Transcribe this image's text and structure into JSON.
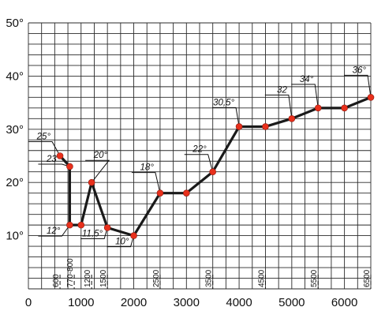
{
  "chart_data": {
    "type": "line",
    "title": "",
    "xlabel": "",
    "ylabel": "",
    "xlim": [
      0,
      6500
    ],
    "ylim": [
      0,
      50
    ],
    "grid": true,
    "x_tick_labels": [
      "0",
      "1000",
      "2000",
      "3000",
      "4000",
      "5000",
      "6000"
    ],
    "x_tick_values": [
      0,
      1000,
      2000,
      3000,
      4000,
      5000,
      6000
    ],
    "y_tick_labels": [
      "10°",
      "20°",
      "30°",
      "40°",
      "50°"
    ],
    "y_tick_values": [
      10,
      20,
      30,
      40,
      50
    ],
    "depth_markers": [
      {
        "x": 600,
        "label": "600"
      },
      {
        "x": 870,
        "label": "770-800"
      },
      {
        "x": 1200,
        "label": "1200"
      },
      {
        "x": 1500,
        "label": "1500"
      },
      {
        "x": 2500,
        "label": "2500"
      },
      {
        "x": 3500,
        "label": "3500"
      },
      {
        "x": 4500,
        "label": "4500"
      },
      {
        "x": 5500,
        "label": "5500"
      },
      {
        "x": 6500,
        "label": "6500"
      }
    ],
    "series": [
      {
        "x": [
          600,
          785,
          785,
          1000,
          1200,
          1500,
          2000,
          2500,
          3000,
          3500,
          4000,
          4500,
          5000,
          5500,
          6000,
          6500
        ],
        "values": [
          25,
          23,
          12,
          12,
          20,
          11.5,
          10,
          18,
          18,
          22,
          30.5,
          30.5,
          32,
          34,
          34,
          36
        ]
      }
    ],
    "annotations": [
      {
        "x": 600,
        "y": 25,
        "label": "25°"
      },
      {
        "x": 785,
        "y": 23,
        "label": "23°"
      },
      {
        "x": 785,
        "y": 12,
        "label": "12°"
      },
      {
        "x": 1200,
        "y": 20,
        "label": "20°"
      },
      {
        "x": 1500,
        "y": 11.5,
        "label": "11,5°"
      },
      {
        "x": 2000,
        "y": 10,
        "label": "10°"
      },
      {
        "x": 2500,
        "y": 18,
        "label": "18°"
      },
      {
        "x": 3500,
        "y": 22,
        "label": "22°"
      },
      {
        "x": 4000,
        "y": 30.5,
        "label": "30,5°"
      },
      {
        "x": 5000,
        "y": 32,
        "label": "32"
      },
      {
        "x": 5500,
        "y": 34,
        "label": "34°"
      },
      {
        "x": 6500,
        "y": 36,
        "label": "36°"
      }
    ]
  },
  "colors": {
    "point": "#e8301c",
    "line": "#1a1a1a",
    "grid": "#2a2a2a"
  }
}
